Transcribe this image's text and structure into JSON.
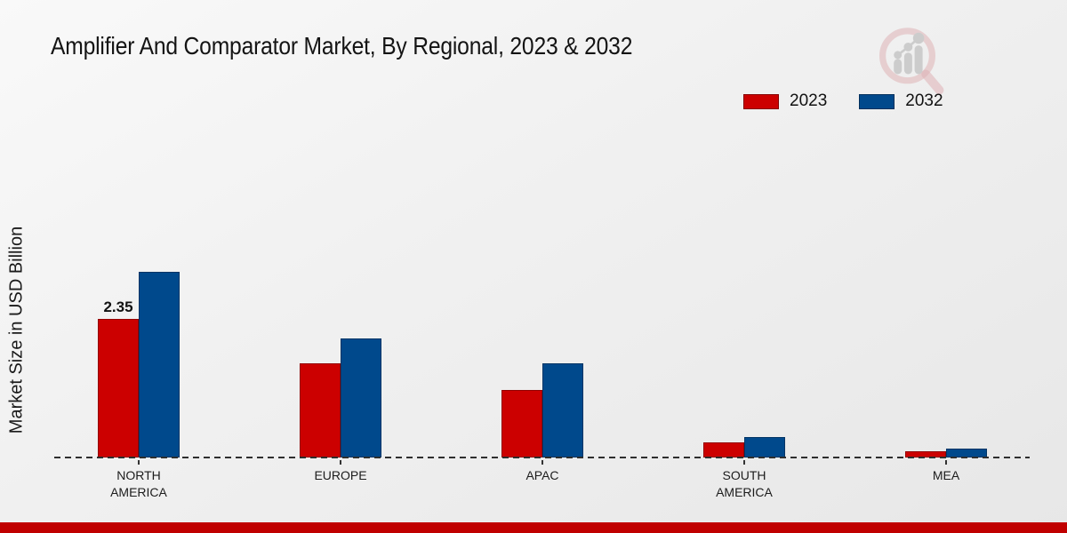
{
  "chart_data": {
    "type": "bar",
    "title": "Amplifier And Comparator Market, By Regional, 2023 & 2032",
    "ylabel": "Market Size in USD Billion",
    "categories": [
      "NORTH AMERICA",
      "EUROPE",
      "APAC",
      "SOUTH AMERICA",
      "MEA"
    ],
    "series": [
      {
        "name": "2023",
        "color": "#cc0000",
        "values": [
          2.35,
          1.6,
          1.15,
          0.25,
          0.1
        ]
      },
      {
        "name": "2032",
        "color": "#00498c",
        "values": [
          3.14,
          2.02,
          1.6,
          0.35,
          0.15
        ]
      }
    ],
    "data_labels": [
      {
        "category_index": 0,
        "series_index": 0,
        "text": "2.35"
      }
    ],
    "ylim": [
      0,
      3.5
    ],
    "grid": false,
    "legend_position": "top-right",
    "baseline_style": "dashed"
  },
  "footer": {
    "bar_color": "#c00000"
  },
  "logo": {
    "name": "magnifier-bar-chart-logo"
  }
}
